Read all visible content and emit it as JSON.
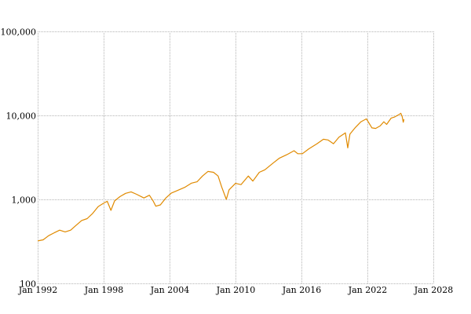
{
  "chart_data": {
    "type": "line",
    "title": "",
    "xlabel": "",
    "ylabel": "",
    "y_scale": "log",
    "ylim": [
      100,
      100000
    ],
    "xlim": [
      "1992-01-01",
      "2028-01-01"
    ],
    "x_ticks": [
      {
        "date": "1992-01-01",
        "label": "Jan 1992"
      },
      {
        "date": "1998-01-01",
        "label": "Jan 1998"
      },
      {
        "date": "2004-01-01",
        "label": "Jan 2004"
      },
      {
        "date": "2010-01-01",
        "label": "Jan 2010"
      },
      {
        "date": "2016-01-01",
        "label": "Jan 2016"
      },
      {
        "date": "2022-01-01",
        "label": "Jan 2022"
      },
      {
        "date": "2028-01-01",
        "label": "Jan 2028"
      }
    ],
    "y_ticks": [
      {
        "value": 100,
        "label": "100"
      },
      {
        "value": 1000,
        "label": "1,000"
      },
      {
        "value": 10000,
        "label": "10,000"
      },
      {
        "value": 100000,
        "label": "100,000"
      }
    ],
    "grid": true,
    "legend": "none",
    "series": [
      {
        "color": "#e08a00",
        "points": [
          [
            "1992-01-01",
            320
          ],
          [
            "1992-07-01",
            330
          ],
          [
            "1993-01-01",
            370
          ],
          [
            "1993-07-01",
            400
          ],
          [
            "1994-01-01",
            430
          ],
          [
            "1994-07-01",
            410
          ],
          [
            "1995-01-01",
            430
          ],
          [
            "1995-07-01",
            490
          ],
          [
            "1996-01-01",
            560
          ],
          [
            "1996-07-01",
            590
          ],
          [
            "1997-01-01",
            680
          ],
          [
            "1997-07-01",
            820
          ],
          [
            "1998-01-01",
            900
          ],
          [
            "1998-05-01",
            950
          ],
          [
            "1998-09-01",
            740
          ],
          [
            "1999-01-01",
            960
          ],
          [
            "1999-07-01",
            1080
          ],
          [
            "2000-01-01",
            1180
          ],
          [
            "2000-07-01",
            1230
          ],
          [
            "2001-01-01",
            1150
          ],
          [
            "2001-09-01",
            1040
          ],
          [
            "2002-03-01",
            1120
          ],
          [
            "2002-07-01",
            960
          ],
          [
            "2002-10-01",
            830
          ],
          [
            "2003-03-01",
            860
          ],
          [
            "2003-09-01",
            1040
          ],
          [
            "2004-03-01",
            1190
          ],
          [
            "2004-09-01",
            1270
          ],
          [
            "2005-06-01",
            1400
          ],
          [
            "2006-01-01",
            1560
          ],
          [
            "2006-07-01",
            1620
          ],
          [
            "2007-01-01",
            1900
          ],
          [
            "2007-07-01",
            2150
          ],
          [
            "2008-01-01",
            2100
          ],
          [
            "2008-06-01",
            1900
          ],
          [
            "2008-10-01",
            1400
          ],
          [
            "2009-03-01",
            1000
          ],
          [
            "2009-06-01",
            1300
          ],
          [
            "2010-01-01",
            1550
          ],
          [
            "2010-07-01",
            1500
          ],
          [
            "2011-03-01",
            1900
          ],
          [
            "2011-08-01",
            1650
          ],
          [
            "2012-03-01",
            2100
          ],
          [
            "2012-09-01",
            2250
          ],
          [
            "2013-06-01",
            2700
          ],
          [
            "2014-01-01",
            3100
          ],
          [
            "2014-09-01",
            3400
          ],
          [
            "2015-05-01",
            3800
          ],
          [
            "2015-09-01",
            3500
          ],
          [
            "2016-02-01",
            3500
          ],
          [
            "2016-09-01",
            4000
          ],
          [
            "2017-06-01",
            4600
          ],
          [
            "2018-01-01",
            5200
          ],
          [
            "2018-06-01",
            5100
          ],
          [
            "2018-12-01",
            4600
          ],
          [
            "2019-06-01",
            5500
          ],
          [
            "2020-01-01",
            6200
          ],
          [
            "2020-03-20",
            4100
          ],
          [
            "2020-06-01",
            6000
          ],
          [
            "2020-12-01",
            7200
          ],
          [
            "2021-06-01",
            8400
          ],
          [
            "2021-12-01",
            9100
          ],
          [
            "2022-06-01",
            7100
          ],
          [
            "2022-10-01",
            7000
          ],
          [
            "2023-03-01",
            7500
          ],
          [
            "2023-07-01",
            8400
          ],
          [
            "2023-10-01",
            7800
          ],
          [
            "2024-03-01",
            9300
          ],
          [
            "2024-07-01",
            9600
          ],
          [
            "2024-12-01",
            10300
          ],
          [
            "2025-01-15",
            10600
          ],
          [
            "2025-03-01",
            9700
          ],
          [
            "2025-04-08",
            8300
          ],
          [
            "2025-05-01",
            9000
          ]
        ]
      }
    ]
  }
}
